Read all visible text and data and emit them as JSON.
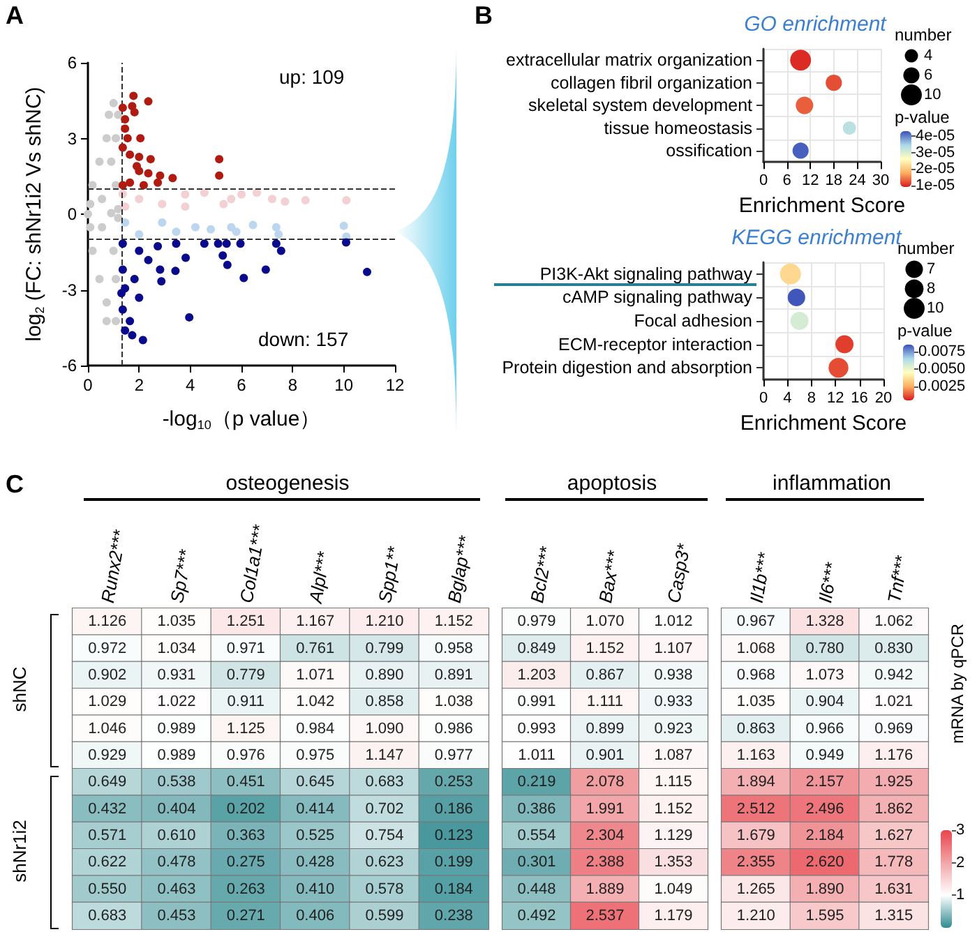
{
  "chart_data": [
    {
      "type": "scatter",
      "xlabel": "-log$_{10}$（p value）",
      "ylabel": "log$_{2}$ (FC: shNr1i2 Vs shNC)",
      "annotations": [
        "A",
        "up: 109",
        "down: 157"
      ],
      "marker": "circle",
      "xlim": [
        0,
        12
      ],
      "ylim": [
        -6,
        6
      ],
      "xticks": [
        0,
        2,
        4,
        6,
        8,
        10,
        12
      ],
      "yticks": [
        -6,
        -3,
        0,
        3,
        6
      ],
      "ref_lines": [
        {
          "axis": "x",
          "value": 1.3,
          "line_style": "dashed",
          "color": "#333333"
        },
        {
          "axis": "y",
          "value": 1,
          "line_style": "dashed",
          "color": "#333333"
        },
        {
          "axis": "y",
          "value": -1,
          "line_style": "dashed",
          "color": "#333333"
        }
      ],
      "series": [
        {
          "color": "#cccccc",
          "x": [
            0,
            1,
            1.18,
            0.73,
            0.45,
            0.18,
            0.09,
            1.09,
            1.09,
            0.91,
            0.09,
            0.18,
            0.45,
            0.73,
            1.09,
            0.73,
            1.09,
            1,
            0.55,
            0.55,
            0.91,
            1.18,
            1.18,
            0.82
          ],
          "values": [
            0,
            4.4,
            3.94,
            3.01,
            2.08,
            1.15,
            0.4,
            1.15,
            3.01,
            2.08,
            -0.52,
            -1.45,
            -2.57,
            -3.5,
            -4.24,
            -4.24,
            -2.57,
            -1.45,
            -0.52,
            0.6,
            0.04,
            -0.15,
            0.2,
            3.94
          ]
        },
        {
          "color": "#f2d0d3",
          "x": [
            2,
            3.8,
            4.55,
            6,
            6.6,
            7.2,
            7.7,
            8.5,
            10.1,
            5.3,
            2.9,
            1.45,
            3.8,
            5.6,
            1.36
          ],
          "values": [
            0.6,
            0.78,
            0.85,
            0.78,
            0.85,
            0.6,
            0.5,
            0.55,
            0.55,
            0.4,
            0.4,
            0.3,
            0.3,
            0.6,
            0.8
          ]
        },
        {
          "color": "#bcd6f0",
          "x": [
            1.45,
            2.9,
            4.2,
            4.8,
            5.6,
            6.45,
            7.36,
            10,
            10.1,
            7.45,
            5.8,
            2,
            3.45
          ],
          "values": [
            -0.33,
            -0.33,
            -0.52,
            -0.6,
            -0.52,
            -0.43,
            -0.52,
            -0.46,
            -0.89,
            -0.8,
            -0.7,
            -0.8,
            -0.7
          ]
        },
        {
          "color": "#b01a10",
          "x": [
            1.78,
            2.36,
            1.73,
            1.36,
            1.45,
            1.82,
            2.05,
            1.55,
            1.36,
            1.64,
            2,
            2.45,
            5.13,
            5.13,
            3.31,
            2.82,
            2.36,
            2,
            1.64,
            1.36,
            2.18,
            2.73,
            1.45,
            1.91
          ],
          "values": [
            4.69,
            4.47,
            4.28,
            4.22,
            3.76,
            4.04,
            3.01,
            3.01,
            2.64,
            2.36,
            2.27,
            2.18,
            2.18,
            1.53,
            1.43,
            1.53,
            1.62,
            1.71,
            1.25,
            1.15,
            1.15,
            1.25,
            3.39,
            1.9
          ]
        },
        {
          "color": "#0a0a8c",
          "x": [
            1.36,
            2,
            2.73,
            3.45,
            5.09,
            5.42,
            5.96,
            7.36,
            7.55,
            5.27,
            5.45,
            6.95,
            6.09,
            10.91,
            10.09,
            3.96,
            2.82,
            3.42,
            2.87,
            3.82,
            1.36,
            1.45,
            1.82,
            1.36,
            1.64,
            2,
            1.45,
            1.73,
            2.15,
            1.31,
            2.36,
            4.55
          ],
          "values": [
            -1.17,
            -1.45,
            -1.27,
            -1.17,
            -1.17,
            -1.17,
            -1.17,
            -1.17,
            -1.45,
            -1.64,
            -2.01,
            -2.2,
            -2.53,
            -2.29,
            -1.12,
            -4.09,
            -2.2,
            -2.25,
            -2.66,
            -1.73,
            -2.2,
            -2.94,
            -2.57,
            -3.78,
            -4.24,
            -3.31,
            -4.61,
            -4.8,
            -4.99,
            -3.13,
            -1.82,
            -1.17
          ]
        }
      ]
    },
    {
      "type": "bubble",
      "title": "GO enrichment",
      "xlabel": "Enrichment Score",
      "legend_title": "number",
      "clabel": "p-value",
      "annotations": [
        "B"
      ],
      "orientation": "horizontal",
      "grid": true,
      "categories": [
        "extracellular matrix organization",
        "collagen fibril organization",
        "skeletal system development",
        "tissue homeostasis",
        "ossification"
      ],
      "values": [
        9.5,
        18,
        10.5,
        22,
        9.5
      ],
      "sizes": [
        10,
        6,
        7,
        4,
        6
      ],
      "cvalues": [
        1e-05,
        1.2e-05,
        1.3e-05,
        3.3e-05,
        4.2e-05
      ],
      "size_legend": [
        4,
        6,
        10
      ],
      "xlim": [
        0,
        30
      ],
      "xticks": [
        0,
        6,
        12,
        18,
        24,
        30
      ],
      "clim": [
        9e-06,
        4.3e-05
      ],
      "cticks": [
        {
          "value": 1e-05,
          "label": "1e-05"
        },
        {
          "value": 2e-05,
          "label": "2e-05"
        },
        {
          "value": 3e-05,
          "label": "3e-05"
        },
        {
          "value": 4e-05,
          "label": "4e-05"
        }
      ]
    },
    {
      "type": "bubble",
      "title": "KEGG enrichment",
      "xlabel": "Enrichment Score",
      "legend_title": "number",
      "clabel": "p-value",
      "orientation": "horizontal",
      "grid": true,
      "categories": [
        "PI3K-Akt signaling pathway",
        "cAMP signaling pathway",
        "Focal adhesion",
        "ECM-receptor interaction",
        "Protein digestion and absorption"
      ],
      "values": [
        4.5,
        5.5,
        6,
        13.5,
        12.5
      ],
      "sizes": [
        10,
        7,
        7.5,
        7.5,
        9
      ],
      "cvalues": [
        0.0035,
        0.0084,
        0.0055,
        0.001,
        0.0012
      ],
      "size_legend": [
        7,
        8,
        10
      ],
      "xlim": [
        0,
        20
      ],
      "xticks": [
        0,
        4,
        8,
        12,
        16,
        20
      ],
      "clim": [
        0.0005,
        0.0085
      ],
      "cticks": [
        {
          "value": 0.0025,
          "label": "0.0025"
        },
        {
          "value": 0.005,
          "label": "0.0050"
        },
        {
          "value": 0.0075,
          "label": "0.0075"
        }
      ]
    },
    {
      "type": "heatmap",
      "title": "osteogenesis",
      "annotations": [
        "C",
        "shNC",
        "shNr1i2"
      ],
      "data_labels": true,
      "tick_labels": "x",
      "categories": [
        "Runx2***",
        "Sp7***",
        "Col1a1***",
        "Alpl***",
        "Spp1**",
        "Bglap***"
      ],
      "y_categories": [
        null,
        null,
        null,
        null,
        null,
        null,
        null,
        null,
        null,
        null,
        null,
        null
      ],
      "cells": [
        [
          1.126,
          1.035,
          1.251,
          1.167,
          1.21,
          1.152
        ],
        [
          0.972,
          1.034,
          0.971,
          0.761,
          0.799,
          0.958
        ],
        [
          0.902,
          0.931,
          0.779,
          1.071,
          0.89,
          0.891
        ],
        [
          1.029,
          1.022,
          0.911,
          1.042,
          0.858,
          1.038
        ],
        [
          1.046,
          0.989,
          1.125,
          0.984,
          1.09,
          0.986
        ],
        [
          0.929,
          0.989,
          0.976,
          0.975,
          1.147,
          0.977
        ],
        [
          0.649,
          0.538,
          0.451,
          0.645,
          0.683,
          0.253
        ],
        [
          0.432,
          0.404,
          0.202,
          0.414,
          0.702,
          0.186
        ],
        [
          0.571,
          0.61,
          0.363,
          0.525,
          0.754,
          0.123
        ],
        [
          0.622,
          0.478,
          0.275,
          0.428,
          0.623,
          0.199
        ],
        [
          0.55,
          0.463,
          0.263,
          0.41,
          0.578,
          0.184
        ],
        [
          0.683,
          0.453,
          0.271,
          0.406,
          0.599,
          0.238
        ]
      ],
      "cell_labels": [
        [
          "1.126",
          "1.035",
          "1.251",
          "1.167",
          "1.210",
          "1.152"
        ],
        [
          "0.972",
          "1.034",
          "0.971",
          "0.761",
          "0.799",
          "0.958"
        ],
        [
          "0.902",
          "0.931",
          "0.779",
          "1.071",
          "0.890",
          "0.891"
        ],
        [
          "1.029",
          "1.022",
          "0.911",
          "1.042",
          "0.858",
          "1.038"
        ],
        [
          "1.046",
          "0.989",
          "1.125",
          "0.984",
          "1.090",
          "0.986"
        ],
        [
          "0.929",
          "0.989",
          "0.976",
          "0.975",
          "1.147",
          "0.977"
        ],
        [
          "0.649",
          "0.538",
          "0.451",
          "0.645",
          "0.683",
          "0.253"
        ],
        [
          "0.432",
          "0.404",
          "0.202",
          "0.414",
          "0.702",
          "0.186"
        ],
        [
          "0.571",
          "0.610",
          "0.363",
          "0.525",
          "0.754",
          "0.123"
        ],
        [
          "0.622",
          "0.478",
          "0.275",
          "0.428",
          "0.623",
          "0.199"
        ],
        [
          "0.550",
          "0.463",
          "0.263",
          "0.410",
          "0.578",
          "0.184"
        ],
        [
          "0.683",
          "0.453",
          "0.271",
          "0.406",
          "0.599",
          "0.238"
        ]
      ]
    },
    {
      "type": "heatmap",
      "title": "apoptosis",
      "data_labels": true,
      "tick_labels": "x",
      "categories": [
        "Bcl2***",
        "Bax***",
        "Casp3*"
      ],
      "y_categories": [
        null,
        null,
        null,
        null,
        null,
        null,
        null,
        null,
        null,
        null,
        null,
        null
      ],
      "cells": [
        [
          0.979,
          1.07,
          1.012
        ],
        [
          0.849,
          1.152,
          1.107
        ],
        [
          1.203,
          0.867,
          0.938
        ],
        [
          0.991,
          1.111,
          0.933
        ],
        [
          0.993,
          0.899,
          0.923
        ],
        [
          1.011,
          0.901,
          1.087
        ],
        [
          0.219,
          2.078,
          1.115
        ],
        [
          0.386,
          1.991,
          1.152
        ],
        [
          0.554,
          2.304,
          1.129
        ],
        [
          0.301,
          2.388,
          1.353
        ],
        [
          0.448,
          1.889,
          1.049
        ],
        [
          0.492,
          2.537,
          1.179
        ]
      ],
      "cell_labels": [
        [
          "0.979",
          "1.070",
          "1.012"
        ],
        [
          "0.849",
          "1.152",
          "1.107"
        ],
        [
          "1.203",
          "0.867",
          "0.938"
        ],
        [
          "0.991",
          "1.111",
          "0.933"
        ],
        [
          "0.993",
          "0.899",
          "0.923"
        ],
        [
          "1.011",
          "0.901",
          "1.087"
        ],
        [
          "0.219",
          "2.078",
          "1.115"
        ],
        [
          "0.386",
          "1.991",
          "1.152"
        ],
        [
          "0.554",
          "2.304",
          "1.129"
        ],
        [
          "0.301",
          "2.388",
          "1.353"
        ],
        [
          "0.448",
          "1.889",
          "1.049"
        ],
        [
          "0.492",
          "2.537",
          "1.179"
        ]
      ]
    },
    {
      "type": "heatmap",
      "title": "inflammation",
      "clabel": "mRNA by qPCR",
      "data_labels": true,
      "tick_labels": "x",
      "clim": [
        0,
        3
      ],
      "cticks": [
        1,
        2,
        3
      ],
      "categories": [
        "Il1b***",
        "Il6***",
        "Tnf***"
      ],
      "y_categories": [
        null,
        null,
        null,
        null,
        null,
        null,
        null,
        null,
        null,
        null,
        null,
        null
      ],
      "cells": [
        [
          0.967,
          1.328,
          1.062
        ],
        [
          1.068,
          0.78,
          0.83
        ],
        [
          0.968,
          1.073,
          0.942
        ],
        [
          1.035,
          0.904,
          1.021
        ],
        [
          0.863,
          0.966,
          0.969
        ],
        [
          1.163,
          0.949,
          1.176
        ],
        [
          1.894,
          2.157,
          1.925
        ],
        [
          2.512,
          2.496,
          1.862
        ],
        [
          1.679,
          2.184,
          1.627
        ],
        [
          2.355,
          2.62,
          1.778
        ],
        [
          1.265,
          1.89,
          1.631
        ],
        [
          1.21,
          1.595,
          1.315
        ]
      ],
      "cell_labels": [
        [
          "0.967",
          "1.328",
          "1.062"
        ],
        [
          "1.068",
          "0.780",
          "0.830"
        ],
        [
          "0.968",
          "1.073",
          "0.942"
        ],
        [
          "1.035",
          "0.904",
          "1.021"
        ],
        [
          "0.863",
          "0.966",
          "0.969"
        ],
        [
          "1.163",
          "0.949",
          "1.176"
        ],
        [
          "1.894",
          "2.157",
          "1.925"
        ],
        [
          "2.512",
          "2.496",
          "1.862"
        ],
        [
          "1.679",
          "2.184",
          "1.627"
        ],
        [
          "2.355",
          "2.620",
          "1.778"
        ],
        [
          "1.265",
          "1.890",
          "1.631"
        ],
        [
          "1.210",
          "1.595",
          "1.315"
        ]
      ]
    }
  ]
}
